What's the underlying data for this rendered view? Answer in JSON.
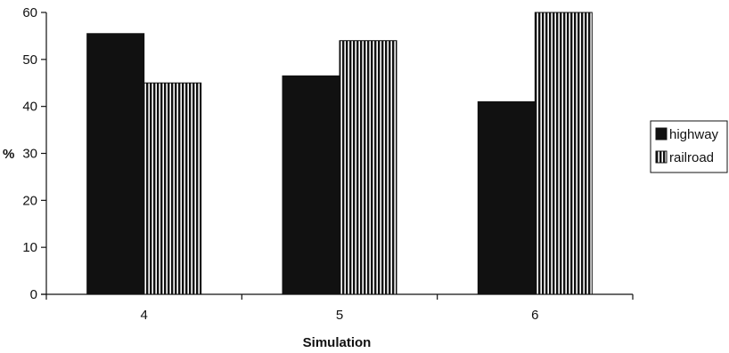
{
  "chart_data": {
    "type": "bar",
    "title": "",
    "xlabel": "Simulation",
    "ylabel": "%",
    "categories": [
      "4",
      "5",
      "6"
    ],
    "series": [
      {
        "name": "highway",
        "values": [
          55.5,
          46.5,
          41
        ],
        "fill": "solid-black"
      },
      {
        "name": "railroad",
        "values": [
          45,
          54,
          60
        ],
        "fill": "vertical-stripes"
      }
    ],
    "ylim": [
      0,
      60
    ],
    "yticks": [
      "0",
      "10",
      "20",
      "30",
      "40",
      "50",
      "60"
    ],
    "grid": false,
    "legend_position": "right",
    "colors": {
      "bar": "#111111",
      "background": "#ffffff",
      "axis": "#111111"
    }
  }
}
